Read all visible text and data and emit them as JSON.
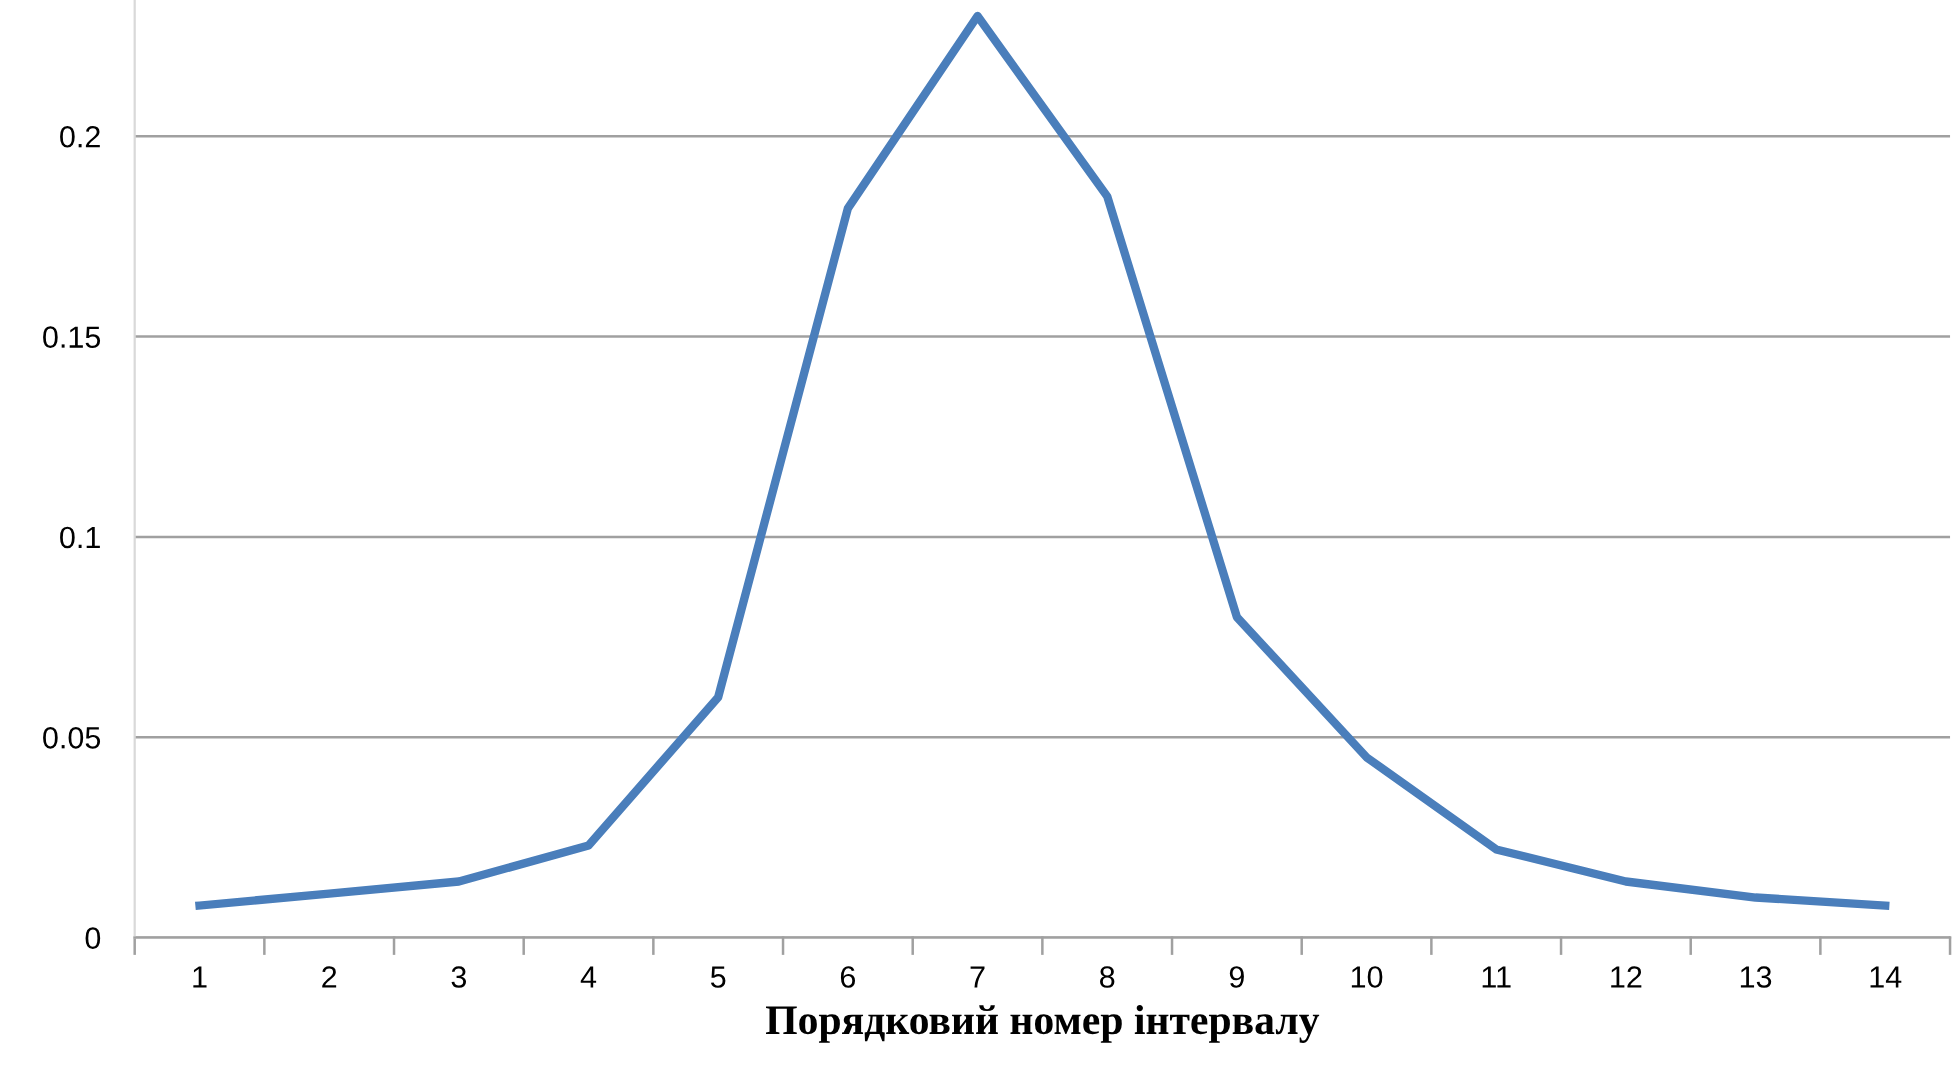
{
  "chart_data": {
    "type": "line",
    "xlabel": "Порядковий номер інтервалу",
    "categories": [
      "1",
      "2",
      "3",
      "4",
      "5",
      "6",
      "7",
      "8",
      "9",
      "10",
      "11",
      "12",
      "13",
      "14"
    ],
    "series": [
      {
        "color": "#4a7ebb",
        "values": [
          0.008,
          0.011,
          0.014,
          0.023,
          0.06,
          0.182,
          0.23,
          0.185,
          0.08,
          0.045,
          0.022,
          0.014,
          0.01,
          0.008
        ]
      }
    ],
    "ylim": [
      0,
      0.234
    ],
    "yticks": [
      0,
      0.05,
      0.1,
      0.15,
      0.2
    ],
    "grid": "y",
    "legend": false,
    "marker": "none",
    "line_style": "solid"
  }
}
